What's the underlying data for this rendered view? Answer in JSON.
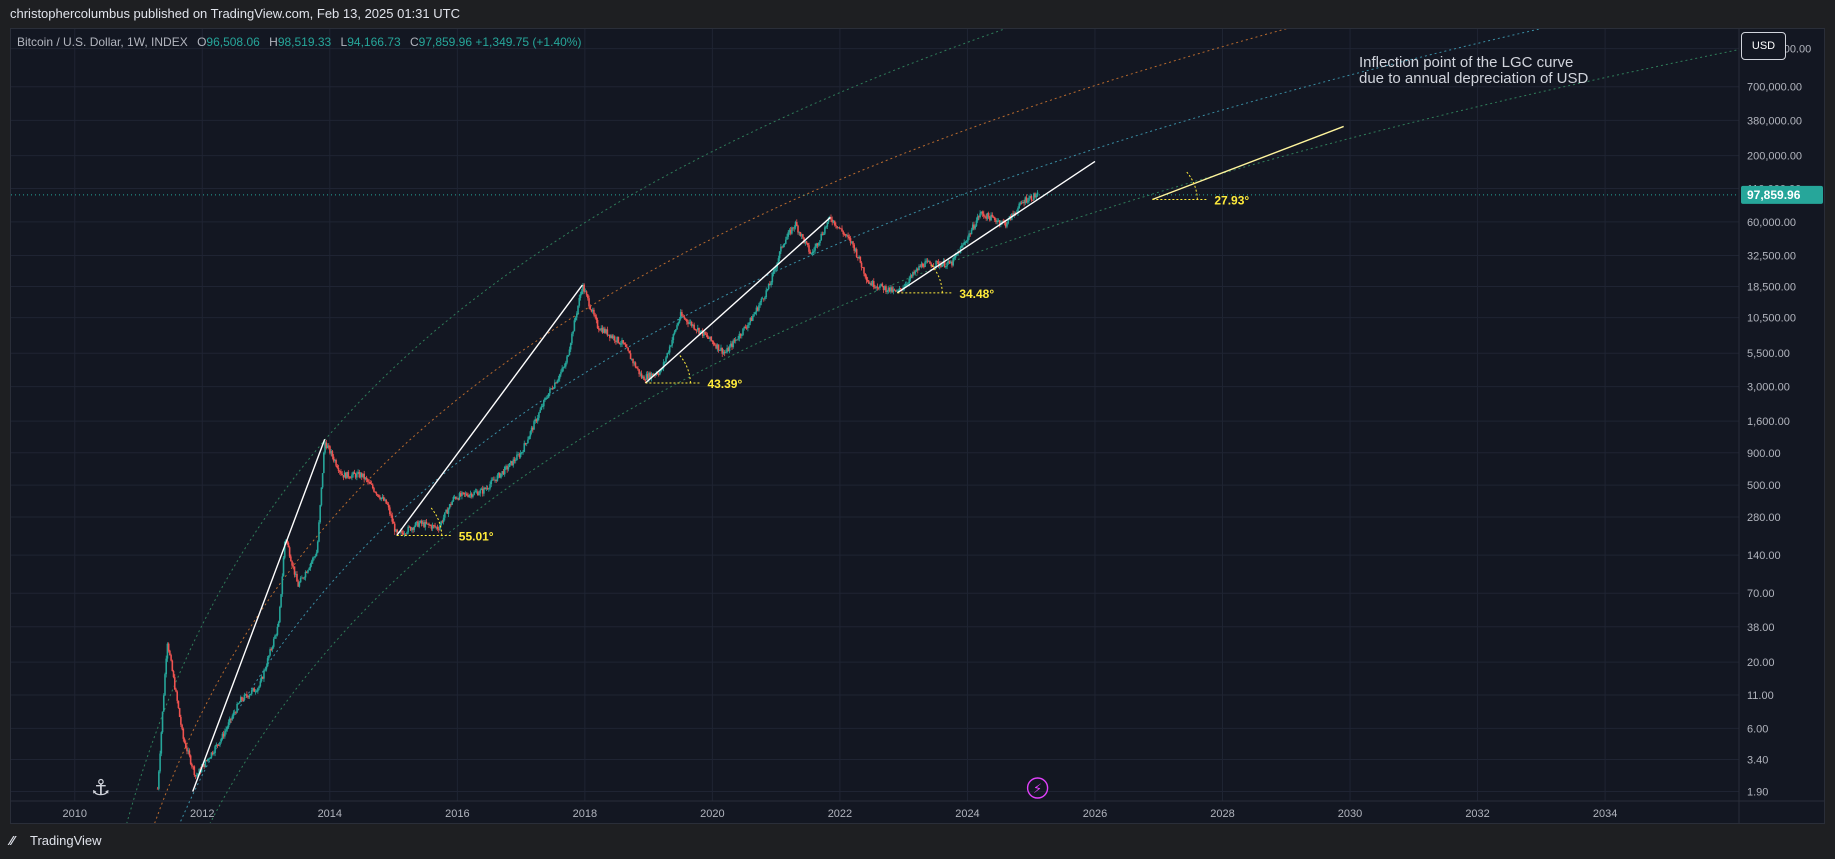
{
  "header": {
    "publish_text": "christophercolumbus published on TradingView.com, Feb 13, 2025 01:31 UTC"
  },
  "legend": {
    "symbol": "Bitcoin / U.S. Dollar, 1W, INDEX",
    "open_label": "O",
    "open": "96,508.06",
    "high_label": "H",
    "high": "98,519.33",
    "low_label": "L",
    "low": "94,166.73",
    "close_label": "C",
    "close": "97,859.96",
    "change": "+1,349.75 (+1.40%)"
  },
  "currency_button": "USD",
  "annotation": {
    "line1": "Inflection point of the LGC curve",
    "line2": "due to annual depreciation of USD"
  },
  "footer": {
    "brand": "TradingView"
  },
  "colors": {
    "background": "#131722",
    "up": "#26a69a",
    "down": "#ef5350",
    "label": "#ffeb3b",
    "trend": "#ffffff"
  },
  "icons": {
    "bottom_left": "dino-icon",
    "bottom_center": "lightning-icon"
  },
  "chart_data": {
    "type": "candlestick",
    "yscale": "log",
    "x_ticks": [
      "2010",
      "2012",
      "2014",
      "2016",
      "2018",
      "2020",
      "2022",
      "2024",
      "2026",
      "2028",
      "2030",
      "2032",
      "2034"
    ],
    "y_ticks": [
      "1,400,000.00",
      "700,000.00",
      "380,000.00",
      "200,000.00",
      "110,000.00",
      "60,000.00",
      "32,500.00",
      "18,500.00",
      "10,500.00",
      "5,500.00",
      "3,000.00",
      "1,600.00",
      "900.00",
      "500.00",
      "280.00",
      "140.00",
      "70.00",
      "38.00",
      "20.00",
      "11.00",
      "6.00",
      "3.40",
      "1.90"
    ],
    "last_price": "97,859.96",
    "angle_labels": [
      "55.01°",
      "43.39°",
      "34.48°",
      "27.93°"
    ],
    "price_path": [
      [
        2011.3,
        2
      ],
      [
        2011.45,
        30
      ],
      [
        2011.7,
        5
      ],
      [
        2011.9,
        2.5
      ],
      [
        2012.3,
        5
      ],
      [
        2012.6,
        10
      ],
      [
        2012.9,
        13
      ],
      [
        2013.2,
        40
      ],
      [
        2013.3,
        200
      ],
      [
        2013.5,
        80
      ],
      [
        2013.8,
        150
      ],
      [
        2013.92,
        1100
      ],
      [
        2014.2,
        600
      ],
      [
        2014.5,
        600
      ],
      [
        2014.9,
        350
      ],
      [
        2015.05,
        200
      ],
      [
        2015.4,
        250
      ],
      [
        2015.7,
        230
      ],
      [
        2015.95,
        400
      ],
      [
        2016.4,
        450
      ],
      [
        2016.8,
        700
      ],
      [
        2017.0,
        900
      ],
      [
        2017.4,
        2500
      ],
      [
        2017.7,
        4500
      ],
      [
        2017.96,
        19000
      ],
      [
        2018.2,
        9000
      ],
      [
        2018.6,
        6500
      ],
      [
        2018.9,
        3500
      ],
      [
        2019.2,
        4000
      ],
      [
        2019.5,
        11000
      ],
      [
        2019.9,
        7500
      ],
      [
        2020.2,
        5500
      ],
      [
        2020.6,
        10000
      ],
      [
        2020.9,
        19000
      ],
      [
        2021.1,
        40000
      ],
      [
        2021.3,
        58000
      ],
      [
        2021.55,
        33000
      ],
      [
        2021.85,
        65000
      ],
      [
        2022.2,
        40000
      ],
      [
        2022.45,
        20000
      ],
      [
        2022.9,
        16500
      ],
      [
        2023.3,
        28000
      ],
      [
        2023.75,
        28000
      ],
      [
        2024.0,
        45000
      ],
      [
        2024.2,
        70000
      ],
      [
        2024.6,
        58000
      ],
      [
        2024.9,
        90000
      ],
      [
        2025.1,
        97859.96
      ]
    ],
    "trendlines": [
      [
        [
          2011.85,
          1.9
        ],
        [
          2013.92,
          1150
        ]
      ],
      [
        [
          2015.05,
          200
        ],
        [
          2017.96,
          19000
        ]
      ],
      [
        [
          2018.95,
          3200
        ],
        [
          2021.85,
          65000
        ]
      ],
      [
        [
          2022.9,
          16500
        ],
        [
          2026.0,
          180000
        ]
      ],
      [
        [
          2026.9,
          90000
        ],
        [
          2029.9,
          340000
        ]
      ]
    ],
    "angle_points": [
      {
        "x": 2015.05,
        "y": 200,
        "label": "55.01°"
      },
      {
        "x": 2018.95,
        "y": 3200,
        "label": "43.39°"
      },
      {
        "x": 2022.9,
        "y": 16500,
        "label": "34.48°"
      },
      {
        "x": 2026.9,
        "y": 90000,
        "label": "27.93°"
      }
    ]
  }
}
